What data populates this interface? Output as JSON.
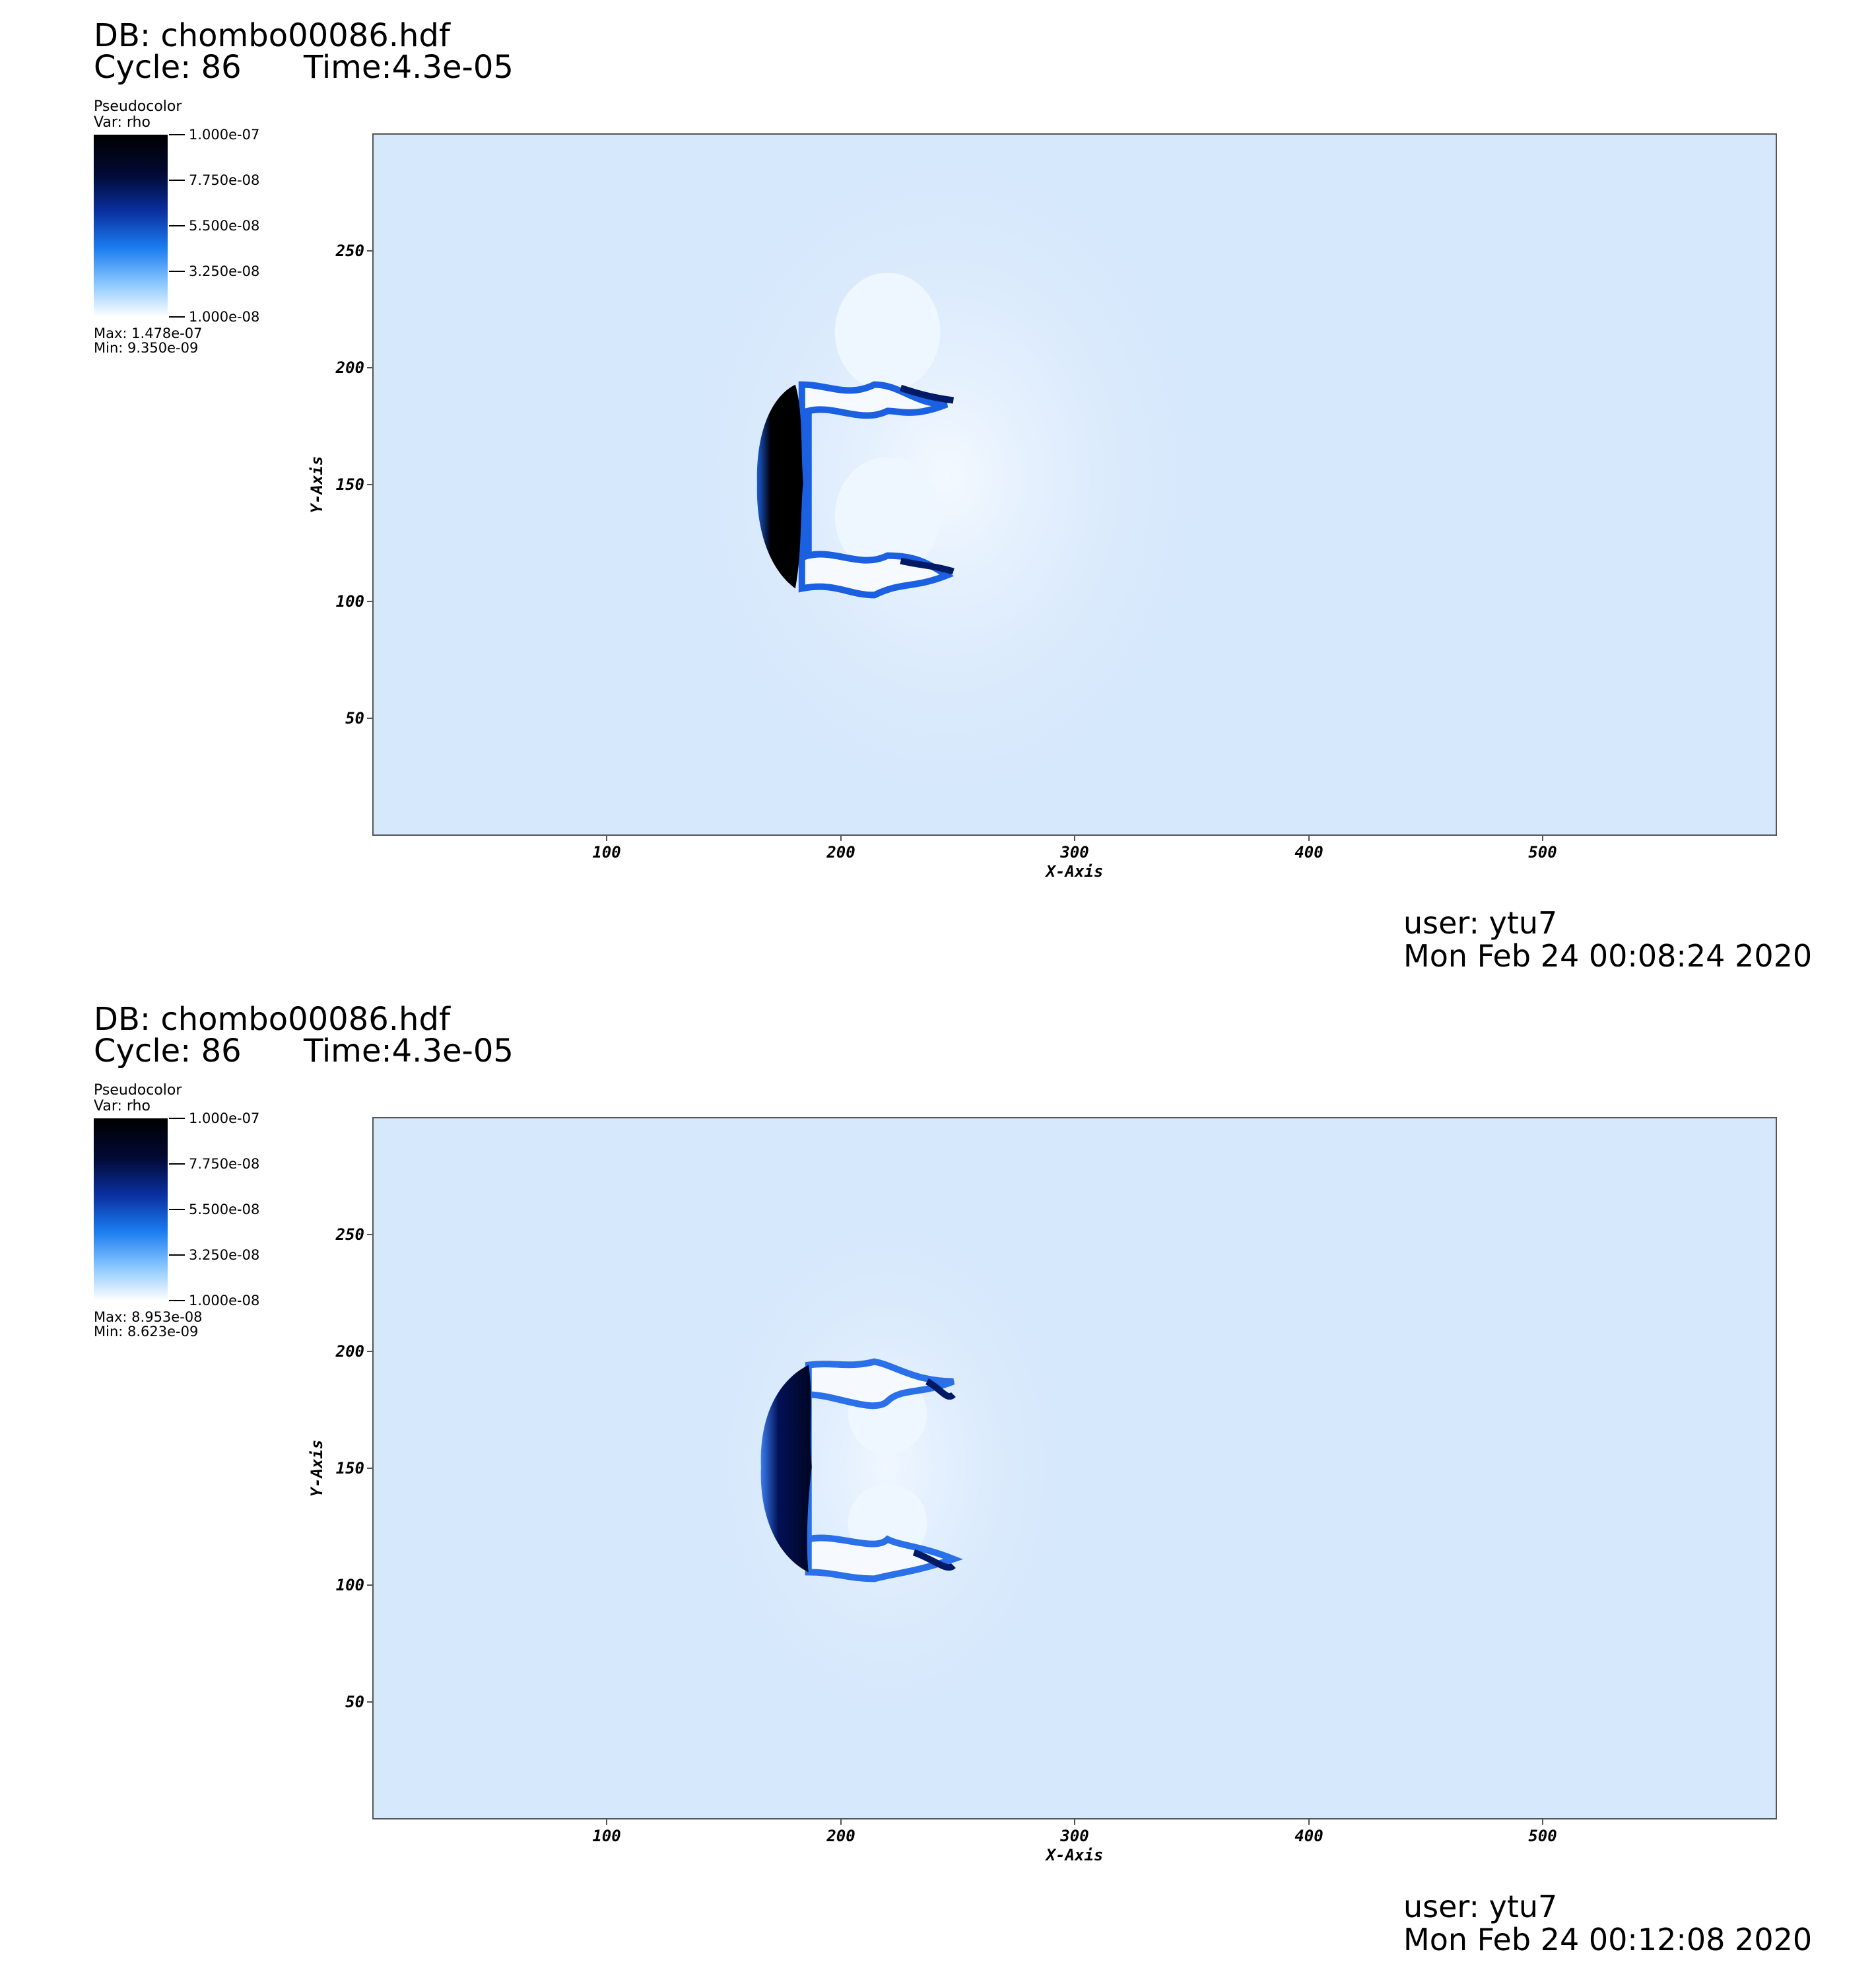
{
  "panels": [
    {
      "db": "DB: chombo00086.hdf",
      "cycle": "Cycle: 86",
      "time": "Time:4.3e-05",
      "legend": {
        "title": "Pseudocolor",
        "var": "Var: rho",
        "labels": [
          "1.000e-07",
          "7.750e-08",
          "5.500e-08",
          "3.250e-08",
          "1.000e-08"
        ],
        "max": "Max:  1.478e-07",
        "min": "Min:  9.350e-09"
      },
      "user": "user: ytu7",
      "date": "Mon Feb 24 00:08:24 2020"
    },
    {
      "db": "DB: chombo00086.hdf",
      "cycle": "Cycle: 86",
      "time": "Time:4.3e-05",
      "legend": {
        "title": "Pseudocolor",
        "var": "Var: rho",
        "labels": [
          "1.000e-07",
          "7.750e-08",
          "5.500e-08",
          "3.250e-08",
          "1.000e-08"
        ],
        "max": "Max:  8.953e-08",
        "min": "Min:  8.623e-09"
      },
      "user": "user: ytu7",
      "date": "Mon Feb 24 00:12:08 2020"
    }
  ],
  "chart_data": [
    {
      "type": "heatmap",
      "xlabel": "X-Axis",
      "ylabel": "Y-Axis",
      "xlim": [
        0,
        600
      ],
      "ylim": [
        0,
        300
      ],
      "xticks": [
        100,
        200,
        300,
        400,
        500
      ],
      "yticks": [
        50,
        100,
        150,
        200,
        250
      ],
      "colorbar": {
        "min": 1e-08,
        "max": 1e-07,
        "colors": [
          "#ffffff",
          "#1a7cf0",
          "#0a2fa0",
          "#000000"
        ]
      },
      "background_color": "#d6e8fc",
      "data_max": 1.478e-07,
      "data_min": 9.35e-09,
      "feature": {
        "front_x": 175,
        "center_y": 150,
        "top_y": 190,
        "bottom_y": 108,
        "tail_x": 255
      }
    },
    {
      "type": "heatmap",
      "xlabel": "X-Axis",
      "ylabel": "Y-Axis",
      "xlim": [
        0,
        600
      ],
      "ylim": [
        0,
        300
      ],
      "xticks": [
        100,
        200,
        300,
        400,
        500
      ],
      "yticks": [
        50,
        100,
        150,
        200,
        250
      ],
      "colorbar": {
        "min": 1e-08,
        "max": 1e-07,
        "colors": [
          "#ffffff",
          "#1a7cf0",
          "#0a2fa0",
          "#000000"
        ]
      },
      "background_color": "#d6e8fc",
      "data_max": 8.953e-08,
      "data_min": 8.623e-09,
      "feature": {
        "front_x": 175,
        "center_y": 150,
        "top_y": 192,
        "bottom_y": 106,
        "tail_x": 258
      }
    }
  ]
}
